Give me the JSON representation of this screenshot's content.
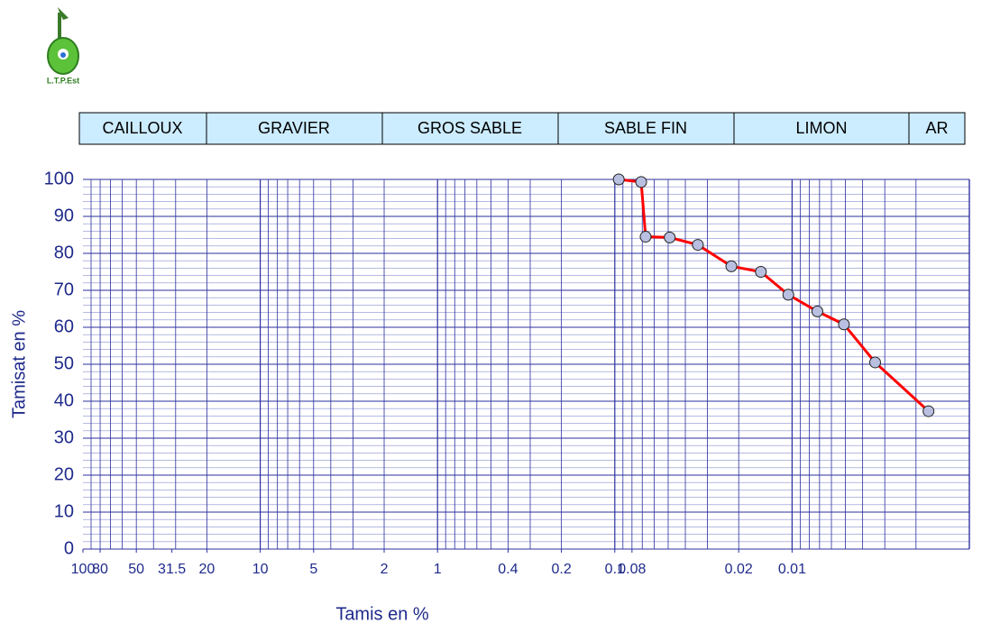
{
  "logo_text": "L.T.P.Est",
  "bands": [
    "CAILLOUX",
    "GRAVIER",
    "GROS SABLE",
    "SABLE FIN",
    "LIMON",
    "AR"
  ],
  "chart_data": {
    "type": "line",
    "ylabel": "Tamisat en %",
    "xlabel": "Tamis en %",
    "xscale": "log",
    "grid": true,
    "minor_grid": true,
    "xlim": [
      100,
      0.001
    ],
    "ylim": [
      0,
      100
    ],
    "xticks": [
      100,
      80,
      50,
      31.5,
      20,
      10,
      5,
      2,
      1,
      0.4,
      0.2,
      0.1,
      0.08,
      0.02,
      0.01
    ],
    "yticks": [
      0,
      10,
      20,
      30,
      40,
      50,
      60,
      70,
      80,
      90,
      100
    ],
    "series": [
      {
        "color": "#ff0000",
        "marker_color": "#b8bfe0",
        "x": [
          0.095,
          0.071,
          0.067,
          0.049,
          0.034,
          0.022,
          0.015,
          0.0105,
          0.0072,
          0.0051,
          0.0034,
          0.0017
        ],
        "values": [
          100,
          99.3,
          84.5,
          84.3,
          82.3,
          76.5,
          75,
          68.8,
          64.3,
          60.8,
          50.5,
          37.3
        ]
      }
    ]
  }
}
